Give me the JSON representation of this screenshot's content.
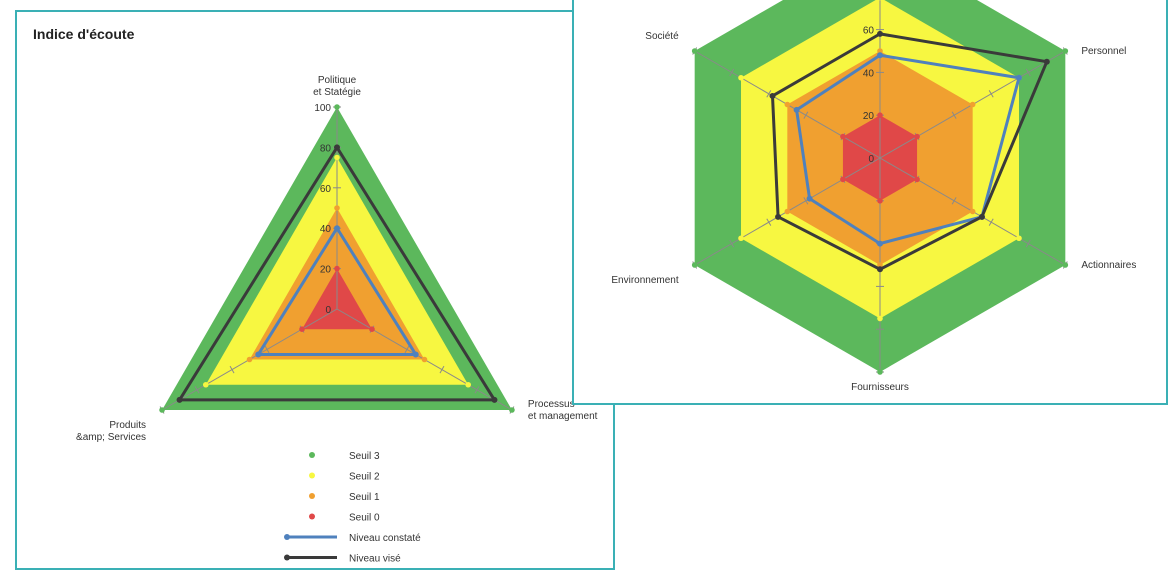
{
  "chart_data": [
    {
      "type": "radar",
      "title": "Indice d'écoute",
      "axes": [
        {
          "lines": [
            "Politique",
            "et Statégie"
          ]
        },
        {
          "lines": [
            "Processus",
            "et management"
          ]
        },
        {
          "lines": [
            "Produits",
            "&amp; Services"
          ]
        }
      ],
      "radial_ticks": [
        "0",
        "20",
        "40",
        "60",
        "80",
        "100"
      ],
      "rmax": 100,
      "thresholds": [
        {
          "name": "Seuil 3",
          "color": "#5cb85c",
          "values": [
            100,
            100,
            100
          ]
        },
        {
          "name": "Seuil 2",
          "color": "#f7f741",
          "values": [
            75,
            75,
            75
          ]
        },
        {
          "name": "Seuil 1",
          "color": "#f0a030",
          "values": [
            50,
            50,
            50
          ]
        },
        {
          "name": "Seuil 0",
          "color": "#e04848",
          "values": [
            20,
            20,
            20
          ]
        }
      ],
      "lines": [
        {
          "name": "Niveau constaté",
          "color": "#4f81bd",
          "values": [
            40,
            45,
            45
          ]
        },
        {
          "name": "Niveau visé",
          "color": "#3a3a3a",
          "values": [
            80,
            90,
            90
          ]
        }
      ],
      "legend_position": "bottom"
    },
    {
      "type": "radar",
      "title": "",
      "axes": [
        {
          "lines": [
            ""
          ]
        },
        {
          "lines": [
            "Personnel"
          ]
        },
        {
          "lines": [
            "Actionnaires"
          ]
        },
        {
          "lines": [
            "Fournisseurs"
          ]
        },
        {
          "lines": [
            "Environnement"
          ]
        },
        {
          "lines": [
            "Société"
          ]
        }
      ],
      "radial_ticks": [
        "0",
        "20",
        "40",
        "60"
      ],
      "rmax": 100,
      "thresholds": [
        {
          "name": "Seuil 3",
          "color": "#5cb85c",
          "values": [
            100,
            100,
            100,
            100,
            100,
            100
          ]
        },
        {
          "name": "Seuil 2",
          "color": "#f7f741",
          "values": [
            75,
            75,
            75,
            75,
            75,
            75
          ]
        },
        {
          "name": "Seuil 1",
          "color": "#f0a030",
          "values": [
            50,
            50,
            50,
            50,
            50,
            50
          ]
        },
        {
          "name": "Seuil 0",
          "color": "#e04848",
          "values": [
            20,
            20,
            20,
            20,
            20,
            20
          ]
        }
      ],
      "lines": [
        {
          "name": "Niveau constaté",
          "color": "#4f81bd",
          "values": [
            48,
            75,
            55,
            40,
            38,
            45
          ]
        },
        {
          "name": "Niveau visé",
          "color": "#3a3a3a",
          "values": [
            58,
            90,
            55,
            52,
            55,
            58
          ]
        }
      ]
    }
  ]
}
